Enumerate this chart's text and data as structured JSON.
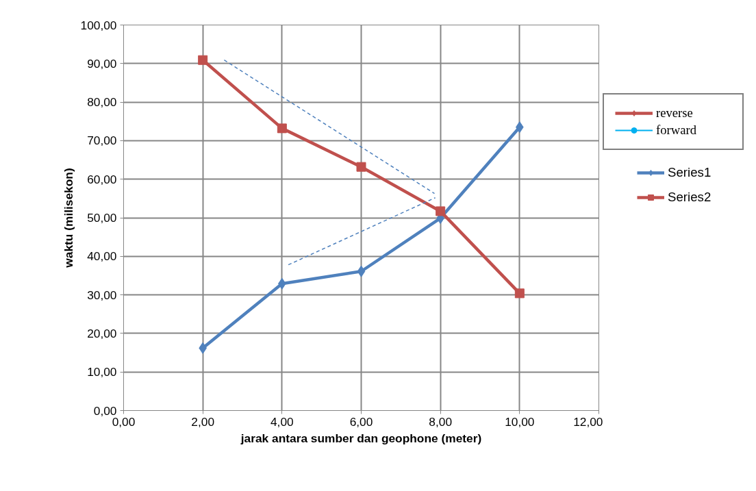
{
  "chart_data": {
    "type": "line",
    "xlabel": "jarak antara sumber dan geophone (meter)",
    "ylabel": "waktu (milisekon)",
    "xlim": [
      0,
      12
    ],
    "ylim": [
      0,
      100
    ],
    "xticks": [
      {
        "value": 0,
        "label": "0,00"
      },
      {
        "value": 2,
        "label": "2,00"
      },
      {
        "value": 4,
        "label": "4,00"
      },
      {
        "value": 6,
        "label": "6,00"
      },
      {
        "value": 8,
        "label": "8,00"
      },
      {
        "value": 10,
        "label": "10,00"
      },
      {
        "value": 12,
        "label": "12,00"
      }
    ],
    "yticks": [
      {
        "value": 0,
        "label": "0,00"
      },
      {
        "value": 10,
        "label": "10,00"
      },
      {
        "value": 20,
        "label": "20,00"
      },
      {
        "value": 30,
        "label": "30,00"
      },
      {
        "value": 40,
        "label": "40,00"
      },
      {
        "value": 50,
        "label": "50,00"
      },
      {
        "value": 60,
        "label": "60,00"
      },
      {
        "value": 70,
        "label": "70,00"
      },
      {
        "value": 80,
        "label": "80,00"
      },
      {
        "value": 90,
        "label": "90,00"
      },
      {
        "value": 100,
        "label": "100,00"
      }
    ],
    "grid": true,
    "legend": "right",
    "series": [
      {
        "name": "Series1",
        "color": "#4f81bd",
        "marker": "diamond",
        "line_style": "solid",
        "x": [
          2,
          4,
          6,
          8,
          10
        ],
        "values": [
          16.2,
          32.9,
          36.1,
          49.9,
          73.5
        ]
      },
      {
        "name": "Series2",
        "color": "#c0504d",
        "marker": "square",
        "line_style": "solid",
        "x": [
          2,
          4,
          6,
          8,
          10
        ],
        "values": [
          90.9,
          73.2,
          63.2,
          51.7,
          30.4
        ]
      },
      {
        "color": "#4f81bd",
        "marker": "none",
        "line_style": "dashed",
        "x": [
          2.54,
          7.85
        ],
        "values": [
          90.9,
          56.3
        ]
      },
      {
        "color": "#4f81bd",
        "marker": "none",
        "line_style": "dashed",
        "x": [
          4.16,
          7.87
        ],
        "values": [
          37.8,
          55.2
        ]
      },
      {
        "name": "reverse",
        "color": "#c0504d",
        "marker": "diamond",
        "line_style": "solid"
      },
      {
        "name": "forward",
        "color": "#00b0f0",
        "marker": "circle",
        "line_style": "solid"
      }
    ]
  }
}
